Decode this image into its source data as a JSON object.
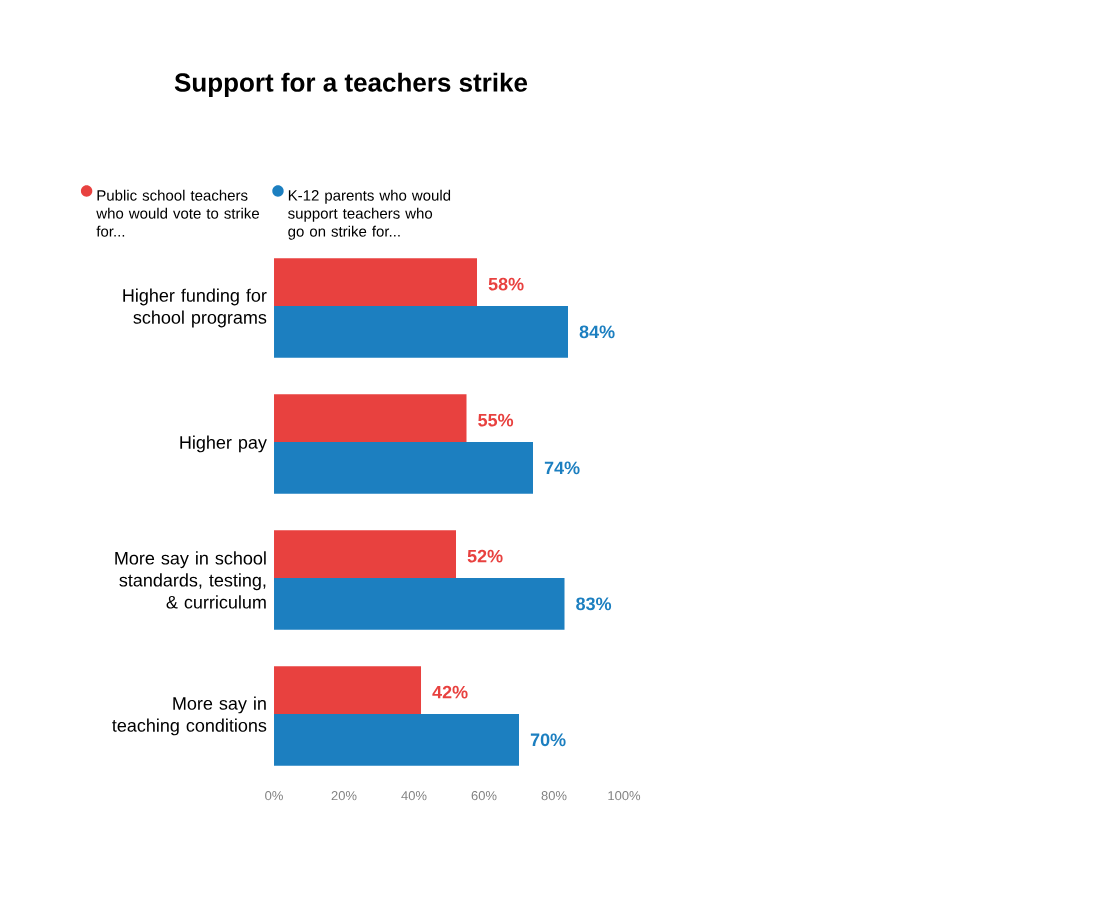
{
  "chart_data": {
    "type": "bar",
    "orientation": "horizontal",
    "title": "Support for a teachers strike",
    "categories": [
      "Higher funding for school programs",
      "Higher pay",
      "More say in school standards, testing, & curriculum",
      "More say in teaching conditions"
    ],
    "series": [
      {
        "name": "Public school teachers who would vote to strike for...",
        "color": "#e8413f",
        "values": [
          58,
          55,
          52,
          42
        ],
        "value_labels": [
          "58%",
          "55%",
          "52%",
          "42%"
        ]
      },
      {
        "name": "K-12 parents who would support teachers who go on strike for...",
        "color": "#1c7fc0",
        "values": [
          84,
          74,
          83,
          70
        ],
        "value_labels": [
          "84%",
          "74%",
          "83%",
          "70%"
        ]
      }
    ],
    "xlim": [
      0,
      100
    ],
    "xticks": [
      {
        "value": 0,
        "label": "0%"
      },
      {
        "value": 20,
        "label": "20%"
      },
      {
        "value": 40,
        "label": "40%"
      },
      {
        "value": 60,
        "label": "60%"
      },
      {
        "value": 80,
        "label": "80%"
      },
      {
        "value": 100,
        "label": "100%"
      }
    ],
    "tick_labels": "x",
    "grid": false,
    "legend": "top",
    "marker": "circle"
  }
}
